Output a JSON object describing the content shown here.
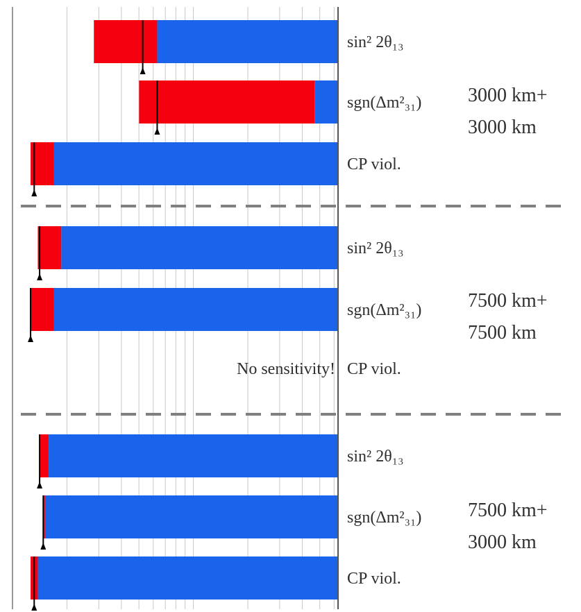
{
  "chart_data": {
    "type": "bar",
    "orientation": "horizontal",
    "x_scale": "log",
    "xlim_log10": [
      -4,
      -2.2
    ],
    "grid": "vertical-log",
    "colors": {
      "red": "#f5000f",
      "blue": "#1a64ec",
      "grid": "#c8c8c8",
      "divider": "#808080"
    },
    "groups": [
      {
        "label_lines": [
          "3000 km+",
          "3000 km"
        ],
        "rows": [
          {
            "param_label": "sin² 2θ₁₃",
            "red_start_log10": -3.55,
            "red_end_log10": -3.2,
            "marker_log10": -3.28,
            "no_sensitivity_label": ""
          },
          {
            "param_label": "sgn(Δm²₃₁)",
            "red_start_log10": -3.3,
            "red_end_log10": -2.33,
            "marker_log10": -3.2,
            "no_sensitivity_label": ""
          },
          {
            "param_label": "CP viol.",
            "red_start_log10": -3.9,
            "red_end_log10": -3.77,
            "marker_log10": -3.88,
            "no_sensitivity_label": ""
          }
        ]
      },
      {
        "label_lines": [
          "7500 km+",
          "7500 km"
        ],
        "rows": [
          {
            "param_label": "sin² 2θ₁₃",
            "red_start_log10": -3.86,
            "red_end_log10": -3.73,
            "marker_log10": -3.85,
            "no_sensitivity_label": ""
          },
          {
            "param_label": "sgn(Δm²₃₁)",
            "red_start_log10": -3.9,
            "red_end_log10": -3.77,
            "marker_log10": -3.9,
            "no_sensitivity_label": ""
          },
          {
            "param_label": "CP viol.",
            "red_start_log10": null,
            "red_end_log10": null,
            "marker_log10": null,
            "no_sensitivity_label": "No sensitivity!"
          }
        ]
      },
      {
        "label_lines": [
          "7500 km+",
          "3000 km"
        ],
        "rows": [
          {
            "param_label": "sin² 2θ₁₃",
            "red_start_log10": -3.85,
            "red_end_log10": -3.8,
            "marker_log10": -3.85,
            "no_sensitivity_label": ""
          },
          {
            "param_label": "sgn(Δm²₃₁)",
            "red_start_log10": -3.83,
            "red_end_log10": -3.82,
            "marker_log10": -3.83,
            "no_sensitivity_label": ""
          },
          {
            "param_label": "CP viol.",
            "red_start_log10": -3.9,
            "red_end_log10": -3.86,
            "marker_log10": -3.88,
            "no_sensitivity_label": ""
          }
        ]
      }
    ]
  }
}
